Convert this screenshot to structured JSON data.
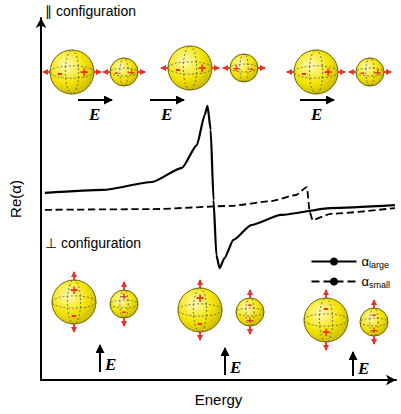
{
  "chart_data": {
    "type": "line",
    "x_label": "Energy",
    "y_label": "Re(α)",
    "xlim": [
      0,
      100
    ],
    "ylim": [
      0,
      100
    ],
    "tick_labels": false,
    "grid": false,
    "legend": "right",
    "series": [
      {
        "name": "αlarge",
        "color": "#000000",
        "line_style": "solid",
        "x": [
          1.1,
          17.3,
          31.3,
          39.7,
          43.9,
          46.1,
          46.9,
          47.8,
          48.6,
          49.4,
          50.3,
          51.7,
          54.2,
          59.2,
          67.6,
          81.6,
          99.7
        ],
        "values": [
          51.7,
          52.5,
          54.7,
          58.6,
          64.9,
          73.2,
          75.7,
          69.1,
          49.7,
          34.5,
          30.9,
          33.7,
          38.7,
          42.8,
          45.6,
          47.5,
          48.3
        ]
      },
      {
        "name": "αsmall",
        "color": "#000000",
        "line_style": "dashed",
        "x": [
          1.1,
          31.3,
          53.6,
          64.8,
          71.8,
          74.9,
          75.7,
          76.5,
          81.6,
          99.7
        ],
        "values": [
          47.0,
          47.2,
          48.1,
          49.4,
          51.1,
          53.3,
          46.4,
          44.2,
          45.9,
          47.5
        ]
      }
    ],
    "annotations": {
      "parallel_title": "∥ configuration",
      "perpendicular_title": "⊥ configuration",
      "field": "E",
      "plus": "+",
      "minus": "-"
    }
  }
}
